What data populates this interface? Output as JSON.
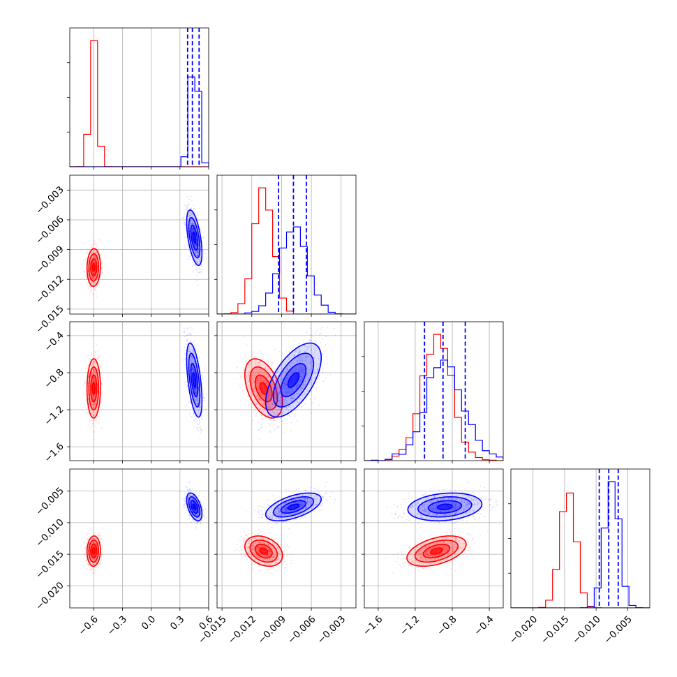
{
  "colors": {
    "series_a": "#ff0000",
    "series_b": "#0000ff",
    "grid": "#b0b0b0"
  },
  "chart_data": {
    "type": "corner",
    "grid": true,
    "params": [
      {
        "range": [
          -0.85,
          0.6
        ],
        "ticks": [
          -0.6,
          -0.3,
          0.0,
          0.3,
          0.6
        ],
        "tick_labels": [
          "−0.6",
          "−0.3",
          "0.0",
          "0.3",
          "0.6"
        ]
      },
      {
        "range": [
          -0.0155,
          -0.0015
        ],
        "ticks": [
          -0.015,
          -0.012,
          -0.009,
          -0.006,
          -0.003
        ],
        "tick_labels": [
          "−0.015",
          "−0.012",
          "−0.009",
          "−0.006",
          "−0.003"
        ]
      },
      {
        "range": [
          -1.75,
          -0.25
        ],
        "ticks": [
          -1.6,
          -1.2,
          -0.8,
          -0.4
        ],
        "tick_labels": [
          "−1.6",
          "−1.2",
          "−0.8",
          "−0.4"
        ]
      },
      {
        "range": [
          -0.0235,
          -0.0015
        ],
        "ticks": [
          -0.02,
          -0.015,
          -0.01,
          -0.005
        ],
        "tick_labels": [
          "−0.020",
          "−0.015",
          "−0.010",
          "−0.005"
        ]
      }
    ],
    "series": [
      {
        "color": "#ff0000",
        "means": [
          -0.6,
          -0.0108,
          -0.97,
          -0.0145
        ],
        "sds": [
          0.035,
          0.00095,
          0.16,
          0.0012
        ],
        "correlations": {
          "1_0": 0.05,
          "2_0": 0.02,
          "2_1": -0.45,
          "3_0": 0.05,
          "3_1": -0.3,
          "3_2": 0.45
        }
      },
      {
        "color": "#0000ff",
        "means": [
          0.45,
          -0.0078,
          -0.88,
          -0.0075
        ],
        "sds": [
          0.04,
          0.0014,
          0.2,
          0.0011
        ],
        "correlations": {
          "1_0": -0.55,
          "2_0": -0.55,
          "2_1": 0.6,
          "3_0": -0.5,
          "3_1": 0.55,
          "3_2": 0.2
        }
      }
    ],
    "quantile_lines": [
      [
        0.38,
        0.43,
        0.5
      ],
      [
        -0.0093,
        -0.0078,
        -0.0065
      ],
      [
        -1.1,
        -0.9,
        -0.66
      ],
      [
        -0.0095,
        -0.008,
        -0.0065
      ]
    ]
  }
}
